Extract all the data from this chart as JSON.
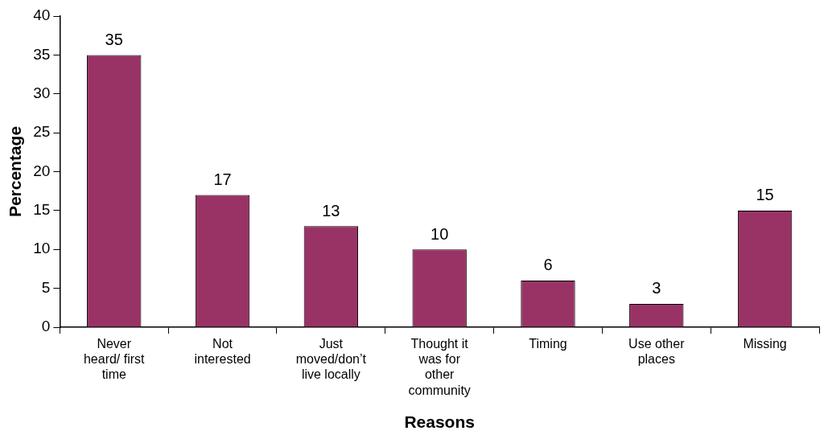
{
  "chart_data": {
    "type": "bar",
    "xlabel": "Reasons",
    "ylabel": "Percentage",
    "categories": [
      "Never heard/ first time",
      "Not interested",
      "Just moved/don’t live locally",
      "Thought it was for other community",
      "Timing",
      "Use other places",
      "Missing"
    ],
    "values": [
      35,
      17,
      13,
      10,
      6,
      3,
      15
    ],
    "color": "#993366",
    "ylim": [
      0,
      40
    ],
    "yticks": [
      0,
      5,
      10,
      15,
      20,
      25,
      30,
      35,
      40
    ],
    "data_labels": true,
    "grid": false,
    "legend": false
  }
}
